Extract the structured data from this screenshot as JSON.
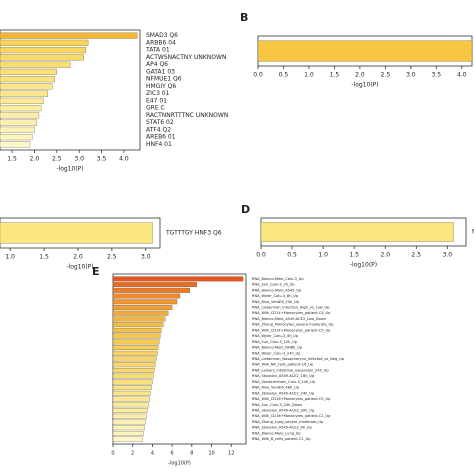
{
  "chart_data": [
    {
      "type": "bar",
      "orientation": "horizontal",
      "xlabel": "-log10(P)",
      "categories": [
        "SMAD3 Q6",
        "ARBB6 04",
        "TATA 01",
        "ACTWSNACTNY UNKNOWN",
        "AP4 Q6",
        "GATA1 03",
        "NFMUE1 Q6",
        "HMGIY Q6",
        "ZIC3 01",
        "E47 01",
        "GRE C",
        "RACTNNRTTTNC UNKNOWN",
        "STAT6 02",
        "ATF4 Q2",
        "AREB6 01",
        "HNF4 01"
      ],
      "values": [
        4.3,
        3.2,
        3.15,
        3.1,
        2.8,
        2.5,
        2.45,
        2.4,
        2.3,
        2.2,
        2.15,
        2.1,
        2.05,
        2.0,
        1.95,
        1.9
      ],
      "colors": [
        "#f5b731",
        "#f8d45a",
        "#f8d75f",
        "#f9da66",
        "#f9dd6e",
        "#fae076",
        "#fae37e",
        "#fbe586",
        "#fbe88e",
        "#fbea96",
        "#fcec9e",
        "#fceea6",
        "#fdf0ae",
        "#fdf2b6",
        "#fdf4be",
        "#fef6c6"
      ],
      "xlim": [
        1.23,
        4.36
      ],
      "xticks": [
        1.5,
        {
          "value": 2,
          "label": "2.0"
        },
        2.5,
        {
          "value": 3,
          "label": "3.0"
        },
        3.5,
        {
          "value": 4,
          "label": "4.0"
        }
      ]
    },
    {
      "type": "bar",
      "orientation": "horizontal",
      "panel_label": "B",
      "xlabel": "-log10(P)",
      "categories": [
        null
      ],
      "values": [
        4.2
      ],
      "colors": [
        "#f7c744"
      ],
      "xlim": [
        0,
        4.2
      ],
      "xticks": [
        {
          "value": 0,
          "label": "0.0"
        },
        0.5,
        {
          "value": 1,
          "label": "1.0"
        },
        1.5,
        {
          "value": 2,
          "label": "2.0"
        },
        2.5,
        {
          "value": 3,
          "label": "3.0"
        },
        3.5,
        {
          "value": 4,
          "label": "4.0"
        }
      ]
    },
    {
      "type": "bar",
      "orientation": "horizontal",
      "xlabel": "-log10(P)",
      "categories": [
        "TGTTTGY HNF3 Q6"
      ],
      "values": [
        3.1
      ],
      "colors": [
        "#fbe680"
      ],
      "xlim": [
        0.85,
        3.21
      ],
      "xticks": [
        {
          "value": 1,
          "label": "1.0"
        },
        1.5,
        {
          "value": 2,
          "label": "2.0"
        },
        2.5,
        {
          "value": 3,
          "label": "3.0"
        }
      ]
    },
    {
      "type": "bar",
      "orientation": "horizontal",
      "panel_label": "D",
      "xlabel": "-log10(P)",
      "categories": [
        "M"
      ],
      "values": [
        3.1
      ],
      "colors": [
        "#fbe680"
      ],
      "xlim": [
        0,
        3.3
      ],
      "xticks": [
        {
          "value": 0,
          "label": "0.0"
        },
        0.5,
        {
          "value": 1,
          "label": "1.0"
        },
        1.5,
        {
          "value": 2,
          "label": "2.0"
        },
        2.5,
        {
          "value": 3,
          "label": "3.0"
        }
      ]
    },
    {
      "type": "bar",
      "orientation": "horizontal",
      "panel_label": "E",
      "xlabel": "-log10(P)",
      "categories": [
        "RNA_Blanco-Melo_Calu-3_Up",
        "RNA_Sun_Calu-3_2h_Up",
        "RNA_Blanco-Melo_A549_Up",
        "RNA_Wyler_Calu-3_8h_Up",
        "RNA_Riva_VeroE6_24h_Up",
        "RNA_Lieberman_Infection_High_vs_Low_Up",
        "RNA_Wilk_CD14+Monocytes_patient-C4_Up",
        "RNA_Blanco-Melo_A549-ACE2_Low_Down",
        "RNA_Zhang_Monocytes_severe-moderate_Up",
        "RNA_Wilk_CD14+Monocytes_patient-C5_Up",
        "RNA_Wyler_Calu-3_4h_Up",
        "RNA_Sun_Calu-3_12h_Up",
        "RNA_Blanco-Melo_NHBE_Up",
        "RNA_Wyler_Calu-3_24h_Up",
        "RNA_Lieberman_Nasopharynx_Infected_vs_Neg_Up",
        "RNA_Wilk_NK_cells_patient-C6_Up",
        "RNA_Lamers_intestinal_expansion_24h_Up",
        "RNA_Stukalov_A549-ACE2_18h_Up",
        "RNA_Vanderheiden_Calu-3_24h_Up",
        "RNA_Riva_VeroE6_48h_Up",
        "RNA_Stukalov_A549-ACE2_24h_Up",
        "RNA_Wilk_CD16+Monocytes_patient-C5_Up",
        "RNA_Sun_Calu-3_24h_Down",
        "RNA_Stukalov_A549-ACE2_30h_Up",
        "RNA_Wilk_CD16+Monocytes_patient-C1_Up",
        "RNA_Zhang_Lung_severe_moderate_Up",
        "RNA_Stukalov_A549-ACE2_6h_Up",
        "RNA_Blanco-Melo_Lung_Up",
        "RNA_Wilk_B_cells_patient-C1_Up"
      ],
      "values": [
        13.2,
        8.5,
        7.8,
        6.8,
        6.5,
        6.0,
        5.6,
        5.3,
        5.1,
        4.9,
        4.8,
        4.7,
        4.6,
        4.5,
        4.4,
        4.3,
        4.2,
        4.1,
        4.0,
        3.9,
        3.8,
        3.7,
        3.6,
        3.5,
        3.4,
        3.3,
        3.2,
        3.1,
        3.0
      ],
      "colors": [
        "#e8541e",
        "#ec6a22",
        "#ee7a26",
        "#f0882a",
        "#f1952e",
        "#f2a032",
        "#f3aa36",
        "#f4b33b",
        "#f5ba40",
        "#f6c046",
        "#f6c54c",
        "#f7c951",
        "#f7cd57",
        "#f8d05d",
        "#f8d363",
        "#f9d669",
        "#f9d96f",
        "#f9dc76",
        "#fadf7d",
        "#fae284",
        "#fae58b",
        "#fbe792",
        "#fbea99",
        "#fcecA0",
        "#fceea8",
        "#fdf0af",
        "#fdf2b7",
        "#fdf4bf",
        "#fef6c7"
      ],
      "xlim": [
        0,
        13.5
      ],
      "xticks": [
        0,
        2,
        4,
        6,
        8,
        10,
        12
      ]
    }
  ]
}
